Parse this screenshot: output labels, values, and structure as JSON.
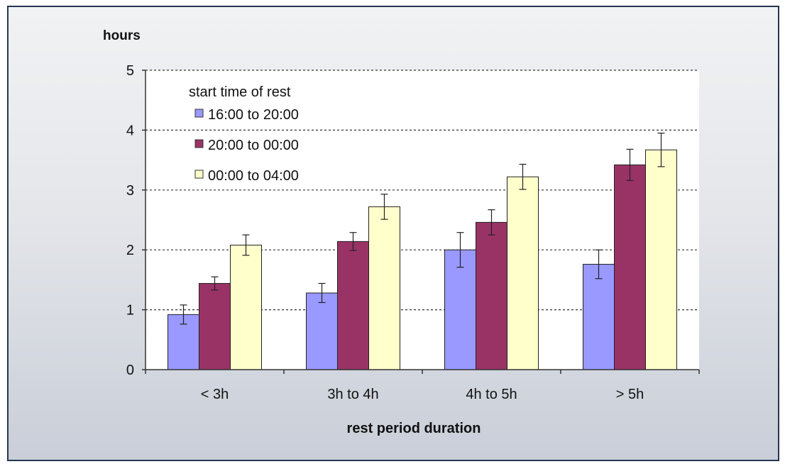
{
  "chart_data": {
    "type": "bar",
    "ylabel": "hours",
    "xlabel": "rest period duration",
    "ylim": [
      0,
      5
    ],
    "yticks": [
      0,
      1,
      2,
      3,
      4,
      5
    ],
    "grid": "horizontal dotted",
    "legend": {
      "title": "start time of rest",
      "placement": "top-left"
    },
    "categories": [
      "< 3h",
      "3h to 4h",
      "4h to 5h",
      "> 5h"
    ],
    "series": [
      {
        "name": "16:00 to 20:00",
        "color": "#9999ff",
        "values": [
          0.92,
          1.28,
          2.0,
          1.76
        ],
        "error": [
          0.16,
          0.16,
          0.29,
          0.24
        ]
      },
      {
        "name": "20:00 to 00:00",
        "color": "#993366",
        "values": [
          1.44,
          2.14,
          2.46,
          3.42
        ],
        "error": [
          0.11,
          0.15,
          0.21,
          0.26
        ]
      },
      {
        "name": "00:00 to 04:00",
        "color": "#ffffcc",
        "values": [
          2.08,
          2.72,
          3.22,
          3.67
        ],
        "error": [
          0.17,
          0.21,
          0.21,
          0.28
        ]
      }
    ]
  }
}
